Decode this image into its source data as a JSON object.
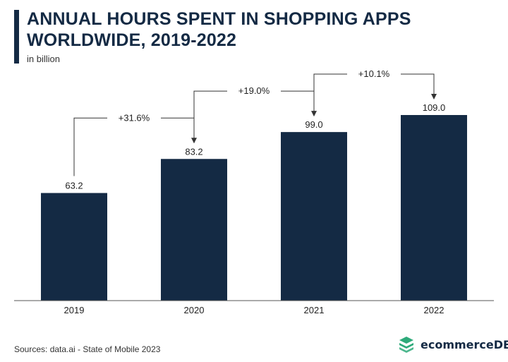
{
  "header": {
    "title": "ANNUAL HOURS SPENT IN SHOPPING APPS WORLDWIDE, 2019-2022",
    "subtitle": "in billion"
  },
  "footer": {
    "source": "Sources: data.ai - State of Mobile 2023",
    "brand": "ecommerceDB"
  },
  "colors": {
    "bar": "#142a44",
    "accent": "#2eaa7a"
  },
  "chart_data": {
    "type": "bar",
    "title": "ANNUAL HOURS SPENT IN SHOPPING APPS WORLDWIDE, 2019-2022",
    "subtitle": "in billion",
    "categories": [
      "2019",
      "2020",
      "2021",
      "2022"
    ],
    "values": [
      63.2,
      83.2,
      99.0,
      109.0
    ],
    "value_labels": [
      "63.2",
      "83.2",
      "99.0",
      "109.0"
    ],
    "annotations": [
      {
        "from": "2019",
        "to": "2020",
        "label": "+31.6%"
      },
      {
        "from": "2020",
        "to": "2021",
        "label": "+19.0%"
      },
      {
        "from": "2021",
        "to": "2022",
        "label": "+10.1%"
      }
    ],
    "ylim": [
      0,
      109
    ],
    "grid": false,
    "legend": "none"
  }
}
